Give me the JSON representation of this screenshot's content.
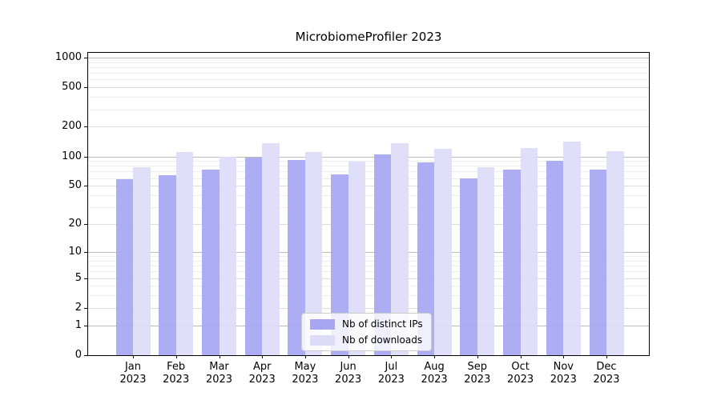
{
  "title": "MicrobiomeProfiler 2023",
  "chart_data": {
    "type": "bar",
    "title": "MicrobiomeProfiler 2023",
    "categories": [
      "Jan",
      "Feb",
      "Mar",
      "Apr",
      "May",
      "Jun",
      "Jul",
      "Aug",
      "Sep",
      "Oct",
      "Nov",
      "Dec"
    ],
    "year": "2023",
    "series": [
      {
        "name": "Nb of distinct IPs",
        "color": "#a6a6f2",
        "values": [
          58,
          64,
          74,
          98,
          92,
          65,
          104,
          87,
          60,
          73,
          90,
          74
        ]
      },
      {
        "name": "Nb of downloads",
        "color": "#dcdcf8",
        "values": [
          77,
          110,
          100,
          136,
          110,
          88,
          136,
          120,
          78,
          121,
          141,
          114
        ]
      }
    ],
    "xlabel": "",
    "ylabel": "",
    "yscale": "log1p",
    "ylim": [
      0,
      1100
    ],
    "yticks": [
      0,
      1,
      2,
      5,
      10,
      20,
      50,
      100,
      200,
      500,
      1000
    ],
    "yticks_decade": [
      1,
      10,
      100,
      1000
    ],
    "yticks_minor": [
      3,
      4,
      6,
      7,
      8,
      9,
      30,
      40,
      60,
      70,
      80,
      90,
      300,
      400,
      600,
      700,
      800,
      900
    ],
    "grid": true,
    "legend_position": "lower center"
  },
  "colors": {
    "background": "#ffffff",
    "bar_distinct_ips": "#a6a6f2",
    "bar_downloads": "#dcdcf8",
    "grid_decade": "#bbbbbb",
    "grid_labeled": "#dcdcdc",
    "grid_minor": "#eeeeee",
    "spine": "#000000",
    "legend_border": "#cccccc"
  },
  "legend": {
    "items": [
      {
        "label": "Nb of distinct IPs"
      },
      {
        "label": "Nb of downloads"
      }
    ]
  }
}
